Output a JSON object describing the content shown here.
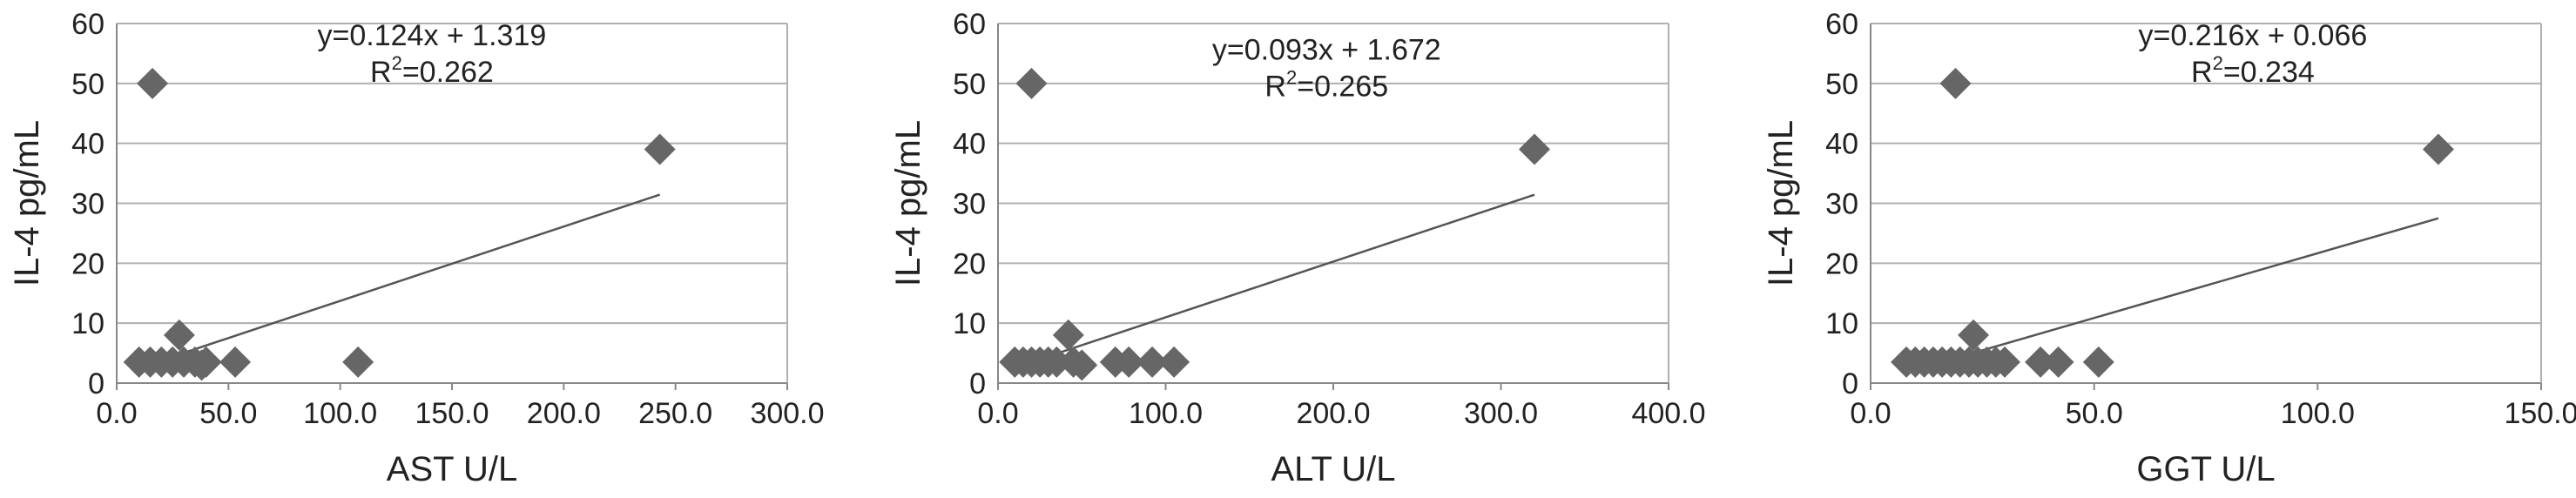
{
  "chart_data": [
    {
      "type": "scatter",
      "x_label": "AST U/L",
      "y_label": "IL-4 pg/mL",
      "color": "#666666",
      "grid": true,
      "x": [
        16,
        243,
        28,
        10,
        15,
        20,
        25,
        30,
        35,
        40,
        38,
        53,
        108
      ],
      "values": [
        50,
        39,
        8,
        3.5,
        3.5,
        3.5,
        3.5,
        3.5,
        3.5,
        3.5,
        3,
        3.5,
        3.5
      ],
      "xlim": [
        0,
        300
      ],
      "ylim": [
        0,
        60
      ],
      "xticks": [
        {
          "value": 0,
          "label": "0.0"
        },
        {
          "value": 50,
          "label": "50.0"
        },
        {
          "value": 100,
          "label": "100.0"
        },
        {
          "value": 150,
          "label": "150.0"
        },
        {
          "value": 200,
          "label": "200.0"
        },
        {
          "value": 250,
          "label": "250.0"
        },
        {
          "value": 300,
          "label": "300.0"
        }
      ],
      "yticks": [
        0,
        10,
        20,
        30,
        40,
        50,
        60
      ],
      "trendline": {
        "slope": 0.124,
        "intercept": 1.319,
        "x_range": [
          10,
          243
        ]
      },
      "equation": "y=0.124x + 1.319",
      "r_squared": {
        "base": "R",
        "sup": "2",
        "text": "=0.262"
      }
    },
    {
      "type": "scatter",
      "x_label": "ALT U/L",
      "y_label": "IL-4 pg/mL",
      "color": "#666666",
      "grid": true,
      "x": [
        20,
        320,
        42,
        10,
        15,
        20,
        25,
        30,
        35,
        45,
        50,
        70,
        78,
        92,
        105
      ],
      "values": [
        50,
        39,
        8,
        3.5,
        3.5,
        3.5,
        3.5,
        3.5,
        3.5,
        3.5,
        3,
        3.5,
        3.5,
        3.5,
        3.5
      ],
      "xlim": [
        0,
        400
      ],
      "ylim": [
        0,
        60
      ],
      "xticks": [
        {
          "value": 0,
          "label": "0.0"
        },
        {
          "value": 100,
          "label": "100.0"
        },
        {
          "value": 200,
          "label": "200.0"
        },
        {
          "value": 300,
          "label": "300.0"
        },
        {
          "value": 400,
          "label": "400.0"
        }
      ],
      "yticks": [
        0,
        10,
        20,
        30,
        40,
        50,
        60
      ],
      "trendline": {
        "slope": 0.093,
        "intercept": 1.672,
        "x_range": [
          10,
          320
        ]
      },
      "equation": "y=0.093x + 1.672",
      "r_squared": {
        "base": "R",
        "sup": "2",
        "text": "=0.265"
      }
    },
    {
      "type": "scatter",
      "x_label": "GGT U/L",
      "y_label": "IL-4 pg/mL",
      "color": "#666666",
      "grid": true,
      "x": [
        19,
        127,
        23,
        8,
        10,
        12,
        14,
        16,
        18,
        20,
        22,
        24,
        26,
        28,
        30,
        38,
        42,
        51
      ],
      "values": [
        50,
        39,
        8,
        3.5,
        3.5,
        3.5,
        3.5,
        3.5,
        3.5,
        3.5,
        3.5,
        3.5,
        3.5,
        3.5,
        3.5,
        3.5,
        3.5,
        3.5
      ],
      "xlim": [
        0,
        150
      ],
      "ylim": [
        0,
        60
      ],
      "xticks": [
        {
          "value": 0,
          "label": "0.0"
        },
        {
          "value": 50,
          "label": "50.0"
        },
        {
          "value": 100,
          "label": "100.0"
        },
        {
          "value": 150,
          "label": "150.0"
        }
      ],
      "yticks": [
        0,
        10,
        20,
        30,
        40,
        50,
        60
      ],
      "trendline": {
        "slope": 0.216,
        "intercept": 0.066,
        "x_range": [
          8,
          127
        ]
      },
      "equation": "y=0.216x + 0.066",
      "r_squared": {
        "base": "R",
        "sup": "2",
        "text": "=0.234"
      }
    }
  ]
}
